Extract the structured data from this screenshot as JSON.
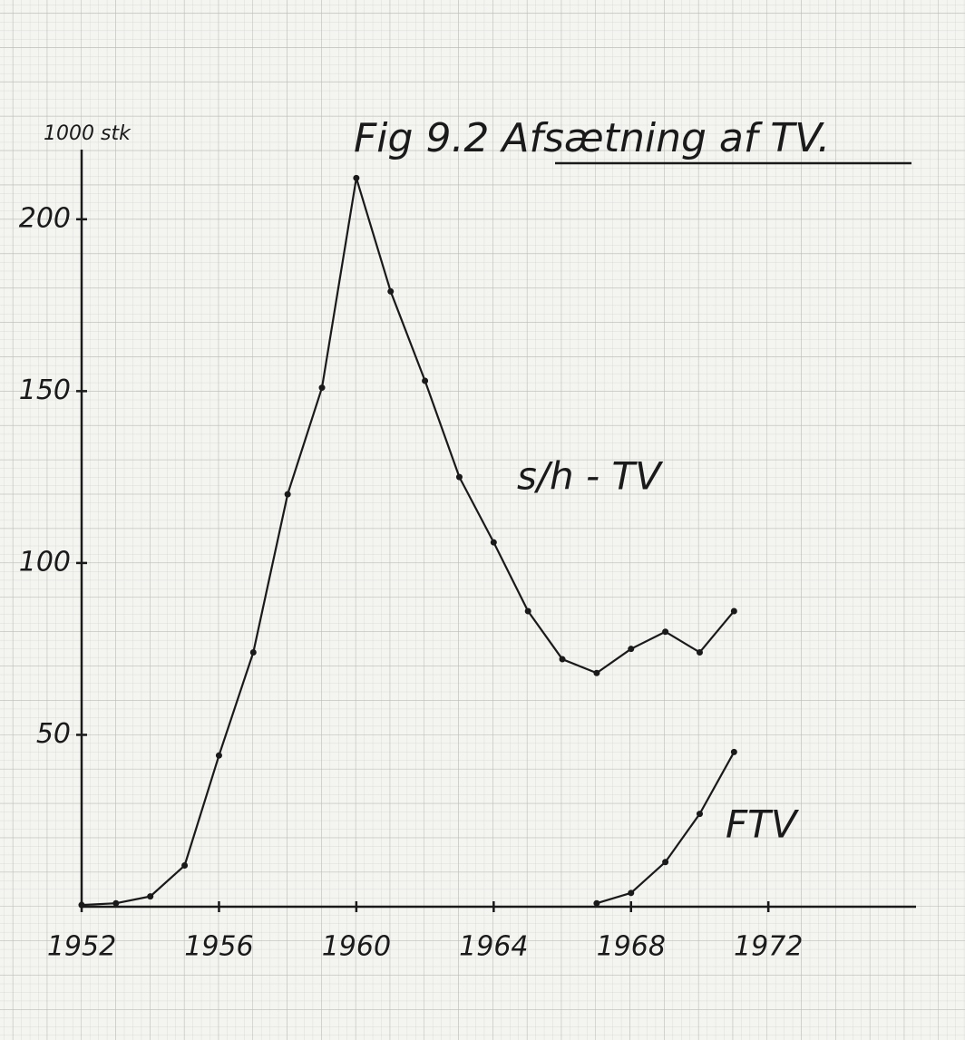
{
  "chart_data": {
    "type": "line",
    "title": "Fig 9.2  Afsætning af TV.",
    "y_label": "1000 stk",
    "x": [
      1952,
      1953,
      1954,
      1955,
      1956,
      1957,
      1958,
      1959,
      1960,
      1961,
      1962,
      1963,
      1964,
      1965,
      1966,
      1967,
      1968,
      1969,
      1970,
      1971
    ],
    "series": [
      {
        "name": "s/h - TV",
        "color": "#1a1a1a",
        "values": [
          0.5,
          1,
          3,
          12,
          44,
          74,
          120,
          151,
          212,
          179,
          153,
          125,
          106,
          86,
          72,
          68,
          75,
          80,
          74,
          86
        ]
      },
      {
        "name": "FTV",
        "color": "#1a1a1a",
        "values": [
          null,
          null,
          null,
          null,
          null,
          null,
          null,
          null,
          null,
          null,
          null,
          null,
          null,
          null,
          null,
          1,
          4,
          13,
          27,
          45
        ]
      }
    ],
    "xlim": [
      1952,
      1976.3
    ],
    "ylim": [
      0,
      220
    ],
    "xticks": [
      1952,
      1956,
      1960,
      1964,
      1968,
      1972
    ],
    "yticks": [
      50,
      100,
      150,
      200
    ]
  }
}
